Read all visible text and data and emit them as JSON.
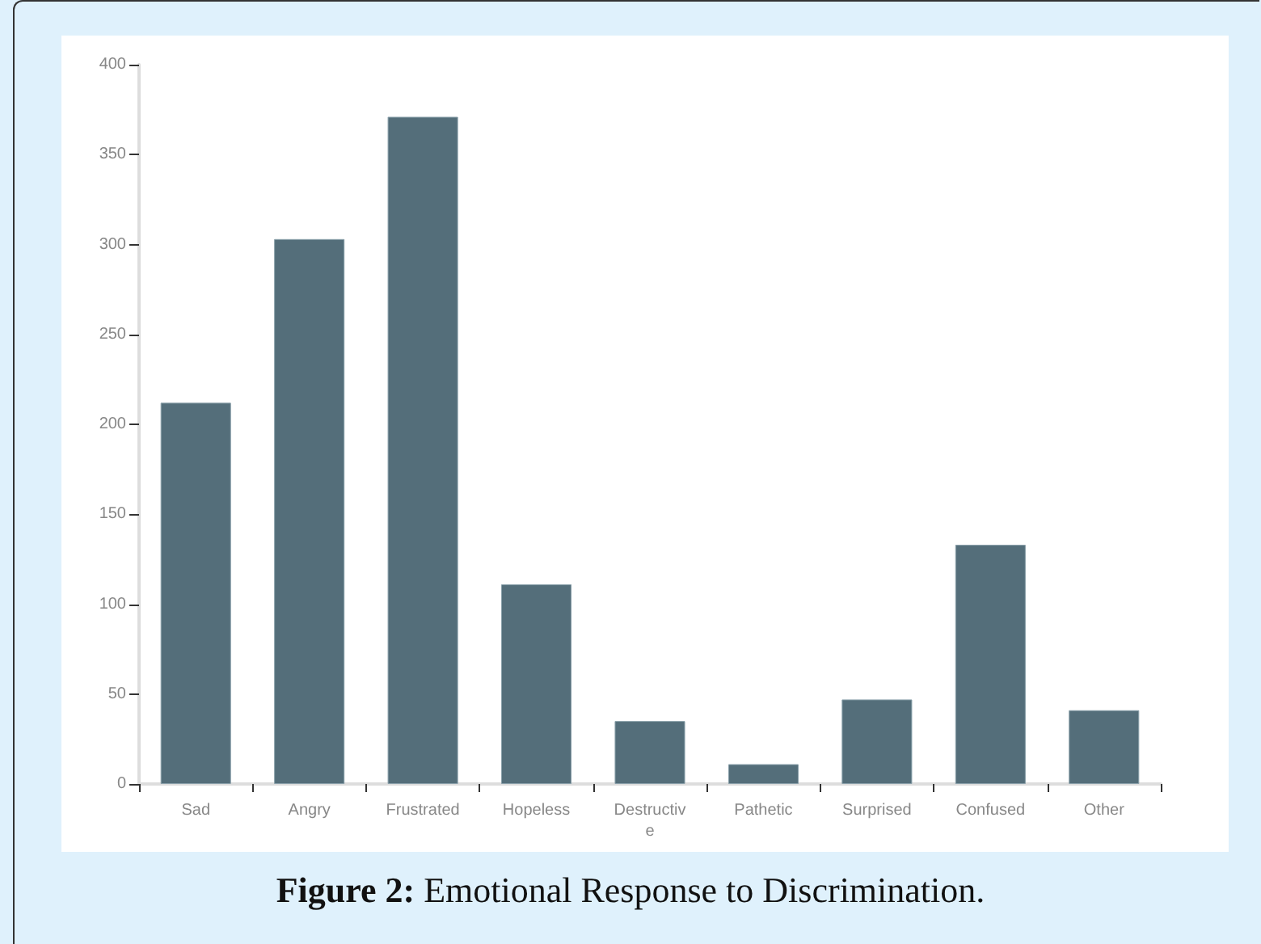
{
  "chart_data": {
    "type": "bar",
    "title": "Figure 2: Emotional Response to Discrimination.",
    "categories": [
      "Sad",
      "Angry",
      "Frustrated",
      "Hopeless",
      "Destructive",
      "Pathetic",
      "Surprised",
      "Confused",
      "Other"
    ],
    "values": [
      212,
      303,
      371,
      111,
      35,
      11,
      47,
      133,
      41
    ],
    "color": "#546e7a",
    "ylim": [
      0,
      400
    ],
    "yticks": [
      0,
      50,
      100,
      150,
      200,
      250,
      300,
      350,
      400
    ],
    "grid": false
  }
}
